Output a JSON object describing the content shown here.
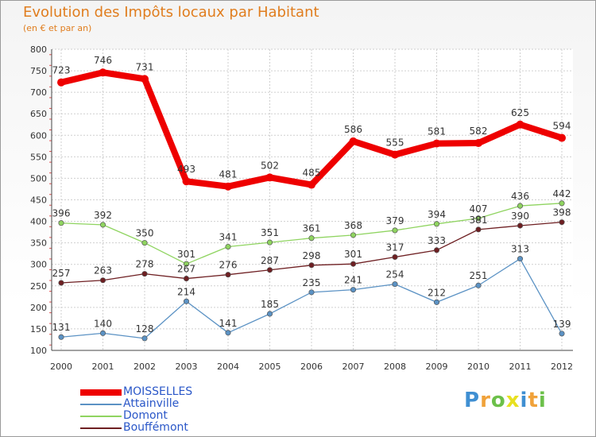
{
  "title": "Evolution des Impôts locaux par Habitant",
  "subtitle": "(en € et par an)",
  "brand": {
    "text": "Proxiti",
    "letter_colors": [
      "#3f8fd2",
      "#f0a23a",
      "#6cc04a",
      "#e8e020",
      "#3f8fd2",
      "#f0a23a",
      "#6cc04a"
    ]
  },
  "chart_data": {
    "type": "line",
    "x": [
      "2000",
      "2001",
      "2002",
      "2003",
      "2004",
      "2005",
      "2006",
      "2007",
      "2008",
      "2009",
      "2010",
      "2011",
      "2012"
    ],
    "ylim": [
      100,
      800
    ],
    "yticks": [
      100,
      150,
      200,
      250,
      300,
      350,
      400,
      450,
      500,
      550,
      600,
      650,
      700,
      750,
      800
    ],
    "grid": true,
    "legend_position": "bottom-left",
    "series": [
      {
        "name": "Attainville",
        "color": "#5b92c4",
        "values": [
          131,
          140,
          128,
          214,
          141,
          185,
          235,
          241,
          254,
          212,
          251,
          313,
          139
        ]
      },
      {
        "name": "Domont",
        "color": "#8fd460",
        "values": [
          396,
          392,
          350,
          301,
          341,
          351,
          361,
          368,
          379,
          394,
          407,
          436,
          442
        ]
      },
      {
        "name": "Bouffémont",
        "color": "#6e1f22",
        "values": [
          257,
          263,
          278,
          267,
          276,
          287,
          298,
          301,
          317,
          333,
          381,
          390,
          398
        ]
      },
      {
        "name": "MOISSELLES",
        "color": "#ee0000",
        "values": [
          723,
          746,
          731,
          493,
          481,
          502,
          485,
          586,
          555,
          581,
          582,
          625,
          594
        ]
      }
    ],
    "legend_order": [
      "MOISSELLES",
      "Attainville",
      "Domont",
      "Bouffémont"
    ]
  }
}
